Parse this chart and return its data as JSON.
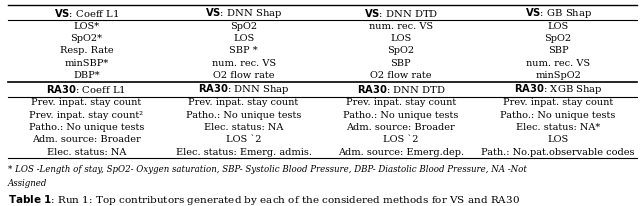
{
  "col_headers_vs": [
    "VS: Coeff L1",
    "VS: DNN Shap",
    "VS: DNN DTD",
    "VS: GB Shap"
  ],
  "col_headers_ra30": [
    "RA30: Coeff L1",
    "RA30: DNN Shap",
    "RA30: DNN DTD",
    "RA30: XGB Shap"
  ],
  "vs_rows": [
    [
      "LOS*",
      "SpO2",
      "num. rec. VS",
      "LOS"
    ],
    [
      "SpO2*",
      "LOS",
      "LOS",
      "SpO2"
    ],
    [
      "Resp. Rate",
      "SBP *",
      "SpO2",
      "SBP"
    ],
    [
      "minSBP*",
      "num. rec. VS",
      "SBP",
      "num. rec. VS"
    ],
    [
      "DBP*",
      "O2 flow rate",
      "O2 flow rate",
      "minSpO2"
    ]
  ],
  "ra30_rows": [
    [
      "Prev. inpat. stay count",
      "Prev. inpat. stay count",
      "Prev. inpat. stay count",
      "Prev. inpat. stay count"
    ],
    [
      "Prev. inpat. stay count²",
      "Patho.: No unique tests",
      "Patho.: No unique tests",
      "Patho.: No unique tests"
    ],
    [
      "Patho.: No unique tests",
      "Elec. status: NA",
      "Adm. source: Broader",
      "Elec. status: NA*"
    ],
    [
      "Adm. source: Broader",
      "LOS `2",
      "LOS `2",
      "LOS"
    ],
    [
      "Elec. status: NA",
      "Elec. status: Emerg. admis.",
      "Adm. source: Emerg.dep.",
      "Path.: No.pat.observable codes"
    ]
  ],
  "footnote_line1": "* LOS -Length of stay, SpO2- Oxygen saturation, SBP- Systolic Blood Pressure, DBP- Diastolic Blood Pressure, NA -Not",
  "footnote_line2": "Assigned",
  "caption_bold": "Table 1",
  "caption_rest": ": Run 1: Top contributors generated by each of the considered methods for VS and RA30",
  "font_size": 7.0,
  "header_font_size": 7.2
}
